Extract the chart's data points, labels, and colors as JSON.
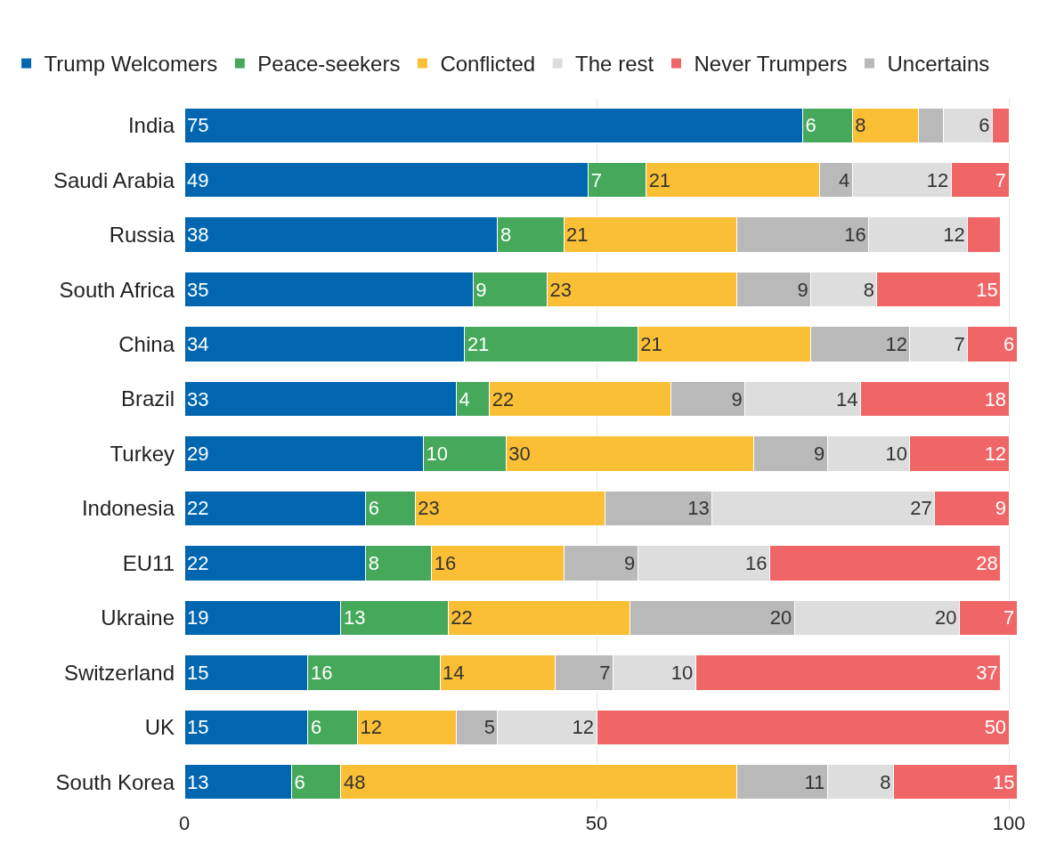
{
  "chart_data": {
    "type": "bar",
    "orientation": "horizontal",
    "stacked": true,
    "categories": [
      "India",
      "Saudi Arabia",
      "Russia",
      "South Africa",
      "China",
      "Brazil",
      "Turkey",
      "Indonesia",
      "EU11",
      "Ukraine",
      "Switzerland",
      "UK",
      "South Korea"
    ],
    "series": [
      {
        "name": "Trump Welcomers",
        "color": "#0066b0",
        "values": [
          75,
          49,
          38,
          35,
          34,
          33,
          29,
          22,
          22,
          19,
          15,
          15,
          13
        ],
        "value_labels": [
          "75",
          "49",
          "38",
          "35",
          "34",
          "33",
          "29",
          "22",
          "22",
          "19",
          "15",
          "15",
          "13"
        ]
      },
      {
        "name": "Peace-seekers",
        "color": "#45a85a",
        "values": [
          6,
          7,
          8,
          9,
          21,
          4,
          10,
          6,
          8,
          13,
          16,
          6,
          6
        ],
        "value_labels": [
          "6",
          "7",
          "8",
          "9",
          "21",
          "4",
          "10",
          "6",
          "8",
          "13",
          "16",
          "6",
          "6"
        ]
      },
      {
        "name": "Conflicted",
        "color": "#fbbf35",
        "values": [
          8,
          21,
          21,
          23,
          21,
          22,
          30,
          23,
          16,
          22,
          14,
          12,
          48
        ],
        "value_labels": [
          "8",
          "21",
          "21",
          "23",
          "21",
          "22",
          "30",
          "23",
          "16",
          "22",
          "14",
          "12",
          "48"
        ]
      },
      {
        "name": "Uncertains",
        "color": "#b9b9b9",
        "values": [
          3,
          4,
          16,
          9,
          12,
          9,
          9,
          13,
          9,
          20,
          7,
          5,
          11
        ],
        "value_labels": [
          null,
          "4",
          "16",
          "9",
          "12",
          "9",
          "9",
          "13",
          "9",
          "20",
          "7",
          "5",
          "11"
        ]
      },
      {
        "name": "The rest",
        "color": "#dddddd",
        "values": [
          6,
          12,
          12,
          8,
          7,
          14,
          10,
          27,
          16,
          20,
          10,
          12,
          8
        ],
        "value_labels": [
          "6",
          "12",
          "12",
          "8",
          "7",
          "14",
          "10",
          "27",
          "16",
          "20",
          "10",
          "12",
          "8"
        ]
      },
      {
        "name": "Never Trumpers",
        "color": "#f06565",
        "values": [
          2,
          7,
          4,
          15,
          6,
          18,
          12,
          9,
          28,
          7,
          37,
          50,
          15
        ],
        "value_labels": [
          null,
          "7",
          null,
          "15",
          "6",
          "18",
          "12",
          "9",
          "28",
          "7",
          "37",
          "50",
          "15"
        ]
      }
    ],
    "xlim": [
      0,
      101.5
    ],
    "xticks": [
      0,
      50,
      100
    ],
    "grid": "x",
    "legend": "top"
  }
}
